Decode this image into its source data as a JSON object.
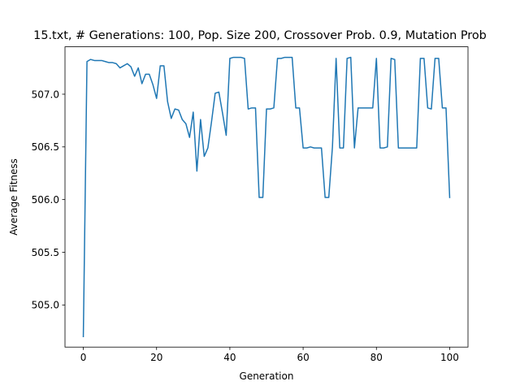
{
  "chart_data": {
    "type": "line",
    "title": "15.txt, # Generations: 100, Pop. Size 200, Crossover Prob. 0.9, Mutation Prob",
    "xlabel": "Generation",
    "ylabel": "Average Fitness",
    "xlim": [
      -5,
      105
    ],
    "ylim": [
      504.6,
      507.45
    ],
    "xticks": [
      0,
      20,
      40,
      60,
      80,
      100
    ],
    "xtick_labels": [
      "0",
      "20",
      "40",
      "60",
      "80",
      "100"
    ],
    "yticks": [
      505.0,
      505.5,
      506.0,
      506.5,
      507.0
    ],
    "ytick_labels": [
      "505.0",
      "505.5",
      "506.0",
      "506.5",
      "507.0"
    ],
    "grid": false,
    "line_color": "#1f77b4",
    "series": [
      {
        "x": [
          0,
          1,
          2,
          3,
          4,
          5,
          6,
          7,
          8,
          9,
          10,
          11,
          12,
          13,
          14,
          15,
          16,
          17,
          18,
          19,
          20,
          21,
          22,
          23,
          24,
          25,
          26,
          27,
          28,
          29,
          30,
          31,
          32,
          33,
          34,
          35,
          36,
          37,
          38,
          39,
          40,
          41,
          42,
          43,
          44,
          45,
          46,
          47,
          48,
          49,
          50,
          51,
          52,
          53,
          54,
          55,
          56,
          57,
          58,
          59,
          60,
          61,
          62,
          63,
          64,
          65,
          66,
          67,
          68,
          69,
          70,
          71,
          72,
          73,
          74,
          75,
          76,
          77,
          78,
          79,
          80,
          81,
          82,
          83,
          84,
          85,
          86,
          87,
          88,
          89,
          90,
          91,
          92,
          93,
          94,
          95,
          96,
          97,
          98,
          99,
          100
        ],
        "values": [
          504.7,
          507.31,
          507.33,
          507.32,
          507.32,
          507.32,
          507.31,
          507.3,
          507.3,
          507.29,
          507.25,
          507.27,
          507.29,
          507.26,
          507.17,
          507.25,
          507.1,
          507.19,
          507.19,
          507.09,
          506.96,
          507.27,
          507.27,
          506.93,
          506.77,
          506.86,
          506.85,
          506.76,
          506.72,
          506.59,
          506.83,
          506.27,
          506.76,
          506.41,
          506.49,
          506.74,
          507.01,
          507.02,
          506.82,
          506.61,
          507.34,
          507.35,
          507.35,
          507.35,
          507.34,
          506.86,
          506.87,
          506.87,
          506.02,
          506.02,
          506.86,
          506.86,
          506.87,
          507.34,
          507.34,
          507.35,
          507.35,
          507.35,
          506.87,
          506.87,
          506.49,
          506.49,
          506.5,
          506.49,
          506.49,
          506.49,
          506.02,
          506.02,
          506.5,
          507.34,
          506.49,
          506.49,
          507.34,
          507.35,
          506.49,
          506.87,
          506.87,
          506.87,
          506.87,
          506.87,
          507.34,
          506.49,
          506.49,
          506.5,
          507.34,
          507.33,
          506.49,
          506.49,
          506.49,
          506.49,
          506.49,
          506.49,
          507.34,
          507.34,
          506.87,
          506.86,
          507.34,
          507.34,
          506.87,
          506.87,
          506.02
        ]
      }
    ]
  }
}
